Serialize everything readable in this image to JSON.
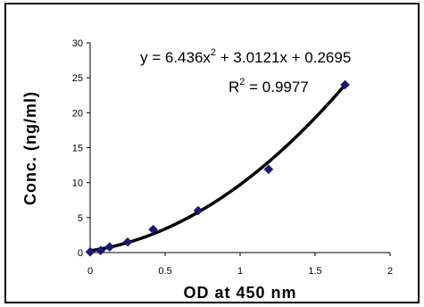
{
  "chart_data": {
    "type": "scatter",
    "xlabel": "OD at 450 nm",
    "ylabel": "Conc. (ng/ml)",
    "xlim": [
      0,
      2
    ],
    "ylim": [
      0,
      30
    ],
    "x_ticks": [
      "0",
      "0.5",
      "1",
      "1.5",
      "2"
    ],
    "y_ticks": [
      "0",
      "5",
      "10",
      "15",
      "20",
      "25",
      "30"
    ],
    "grid": false,
    "points": [
      {
        "x": 0.0,
        "y": 0.1
      },
      {
        "x": 0.07,
        "y": 0.3
      },
      {
        "x": 0.13,
        "y": 0.8
      },
      {
        "x": 0.25,
        "y": 1.5
      },
      {
        "x": 0.42,
        "y": 3.3
      },
      {
        "x": 0.72,
        "y": 6.0
      },
      {
        "x": 1.19,
        "y": 11.9
      },
      {
        "x": 1.7,
        "y": 24.0
      }
    ],
    "marker_color": "#1a1a7a",
    "trendline": {
      "type": "polynomial",
      "coefficients": [
        6.436,
        3.0121,
        0.2695
      ],
      "x_range": [
        0,
        1.7
      ],
      "color": "#000000"
    },
    "annotations": {
      "equation_lhs": "y",
      "equation_a": " = 6.436x",
      "equation_a_exp": "2",
      "equation_rest": " + 3.0121x + 0.2695",
      "r2_base": "R",
      "r2_exp": "2",
      "r2_value": " = 0.9977"
    }
  }
}
